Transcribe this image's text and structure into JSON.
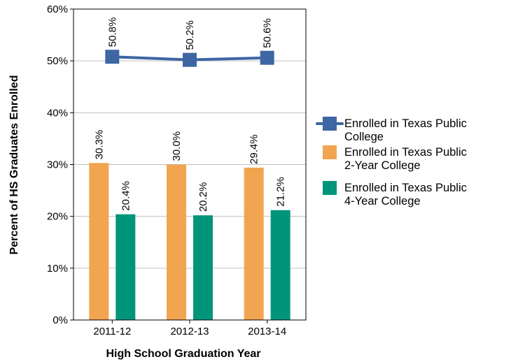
{
  "chart_data": {
    "type": "bar",
    "categories": [
      "2011-12",
      "2012-13",
      "2013-14"
    ],
    "xlabel": "High School Graduation Year",
    "ylabel": "Percent of HS Graduates Enrolled",
    "ylim": [
      0,
      60
    ],
    "y_ticks": [
      "0%",
      "10%",
      "20%",
      "30%",
      "40%",
      "50%",
      "60%"
    ],
    "y_tick_values": [
      0,
      10,
      20,
      30,
      40,
      50,
      60
    ],
    "grid": true,
    "legend_position": "right",
    "series": [
      {
        "name": "Enrolled in Texas Public College",
        "type": "line",
        "color": "#3e66a3",
        "values": [
          50.8,
          50.2,
          50.6
        ],
        "labels": [
          "50.8%",
          "50.2%",
          "50.6%"
        ],
        "legend_lines": [
          "Enrolled in Texas Public",
          "College"
        ]
      },
      {
        "name": "Enrolled in Texas Public 2-Year College",
        "type": "bar",
        "color": "#f1a550",
        "values": [
          30.3,
          30.0,
          29.4
        ],
        "labels": [
          "30.3%",
          "30.0%",
          "29.4%"
        ],
        "legend_lines": [
          "Enrolled in Texas Public",
          "2-Year College"
        ]
      },
      {
        "name": "Enrolled in Texas Public 4-Year College",
        "type": "bar",
        "color": "#00957a",
        "values": [
          20.4,
          20.2,
          21.2
        ],
        "labels": [
          "20.4%",
          "20.2%",
          "21.2%"
        ],
        "legend_lines": [
          "Enrolled in Texas Public",
          "4-Year College"
        ]
      }
    ]
  }
}
